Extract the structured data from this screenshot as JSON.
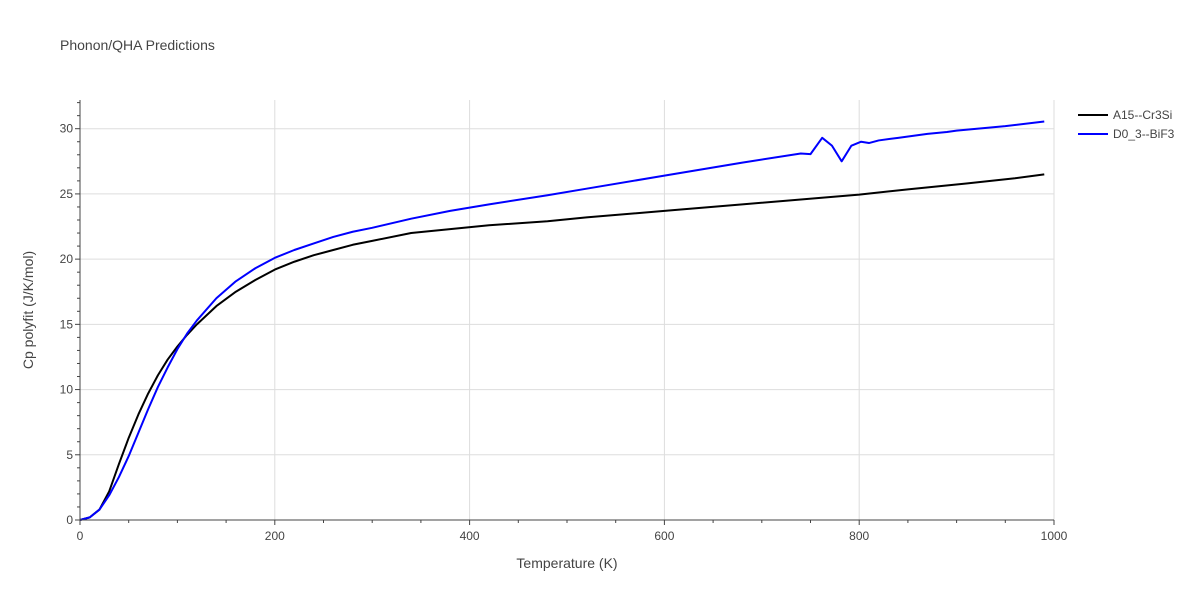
{
  "chart_data": {
    "type": "line",
    "title": "Phonon/QHA Predictions",
    "xlabel": "Temperature (K)",
    "ylabel": "Cp polyfit (J/K/mol)",
    "xlim": [
      0,
      1000
    ],
    "ylim": [
      0,
      32.2
    ],
    "xticks": [
      0,
      200,
      400,
      600,
      800,
      1000
    ],
    "xtick_labels": [
      "0",
      "200",
      "400",
      "600",
      "800",
      "1000"
    ],
    "yticks": [
      0,
      5,
      10,
      15,
      20,
      25,
      30
    ],
    "ytick_labels": [
      "0",
      "5",
      "10",
      "15",
      "20",
      "25",
      "30"
    ],
    "grid": true,
    "legend_position": "top-right",
    "series": [
      {
        "name": "A15--Cr3Si",
        "color": "#000000",
        "x": [
          0,
          10,
          20,
          30,
          40,
          50,
          60,
          70,
          80,
          90,
          100,
          110,
          120,
          140,
          160,
          180,
          200,
          220,
          240,
          260,
          280,
          300,
          340,
          380,
          420,
          480,
          520,
          600,
          680,
          760,
          800,
          850,
          910,
          960,
          990
        ],
        "y": [
          0,
          0.2,
          0.8,
          2.2,
          4.3,
          6.3,
          8.1,
          9.7,
          11.1,
          12.3,
          13.3,
          14.2,
          15.0,
          16.4,
          17.5,
          18.4,
          19.2,
          19.8,
          20.3,
          20.7,
          21.1,
          21.4,
          22.0,
          22.3,
          22.6,
          22.9,
          23.2,
          23.7,
          24.2,
          24.7,
          24.95,
          25.35,
          25.8,
          26.2,
          26.5
        ]
      },
      {
        "name": "D0_3--BiF3",
        "color": "#0000ff",
        "x": [
          0,
          10,
          20,
          30,
          40,
          50,
          60,
          70,
          80,
          90,
          100,
          110,
          120,
          140,
          160,
          180,
          200,
          220,
          240,
          260,
          280,
          300,
          340,
          380,
          420,
          480,
          520,
          600,
          680,
          740,
          750,
          762,
          772,
          782,
          792,
          802,
          810,
          820,
          840,
          870,
          890,
          900,
          950,
          990
        ],
        "y": [
          0,
          0.2,
          0.8,
          1.9,
          3.3,
          4.9,
          6.7,
          8.5,
          10.2,
          11.7,
          13.1,
          14.3,
          15.3,
          17.0,
          18.3,
          19.3,
          20.1,
          20.7,
          21.2,
          21.7,
          22.1,
          22.4,
          23.1,
          23.7,
          24.2,
          24.9,
          25.4,
          26.4,
          27.4,
          28.1,
          28.05,
          29.3,
          28.7,
          27.5,
          28.7,
          29.0,
          28.9,
          29.1,
          29.3,
          29.6,
          29.75,
          29.85,
          30.2,
          30.55
        ]
      }
    ]
  }
}
